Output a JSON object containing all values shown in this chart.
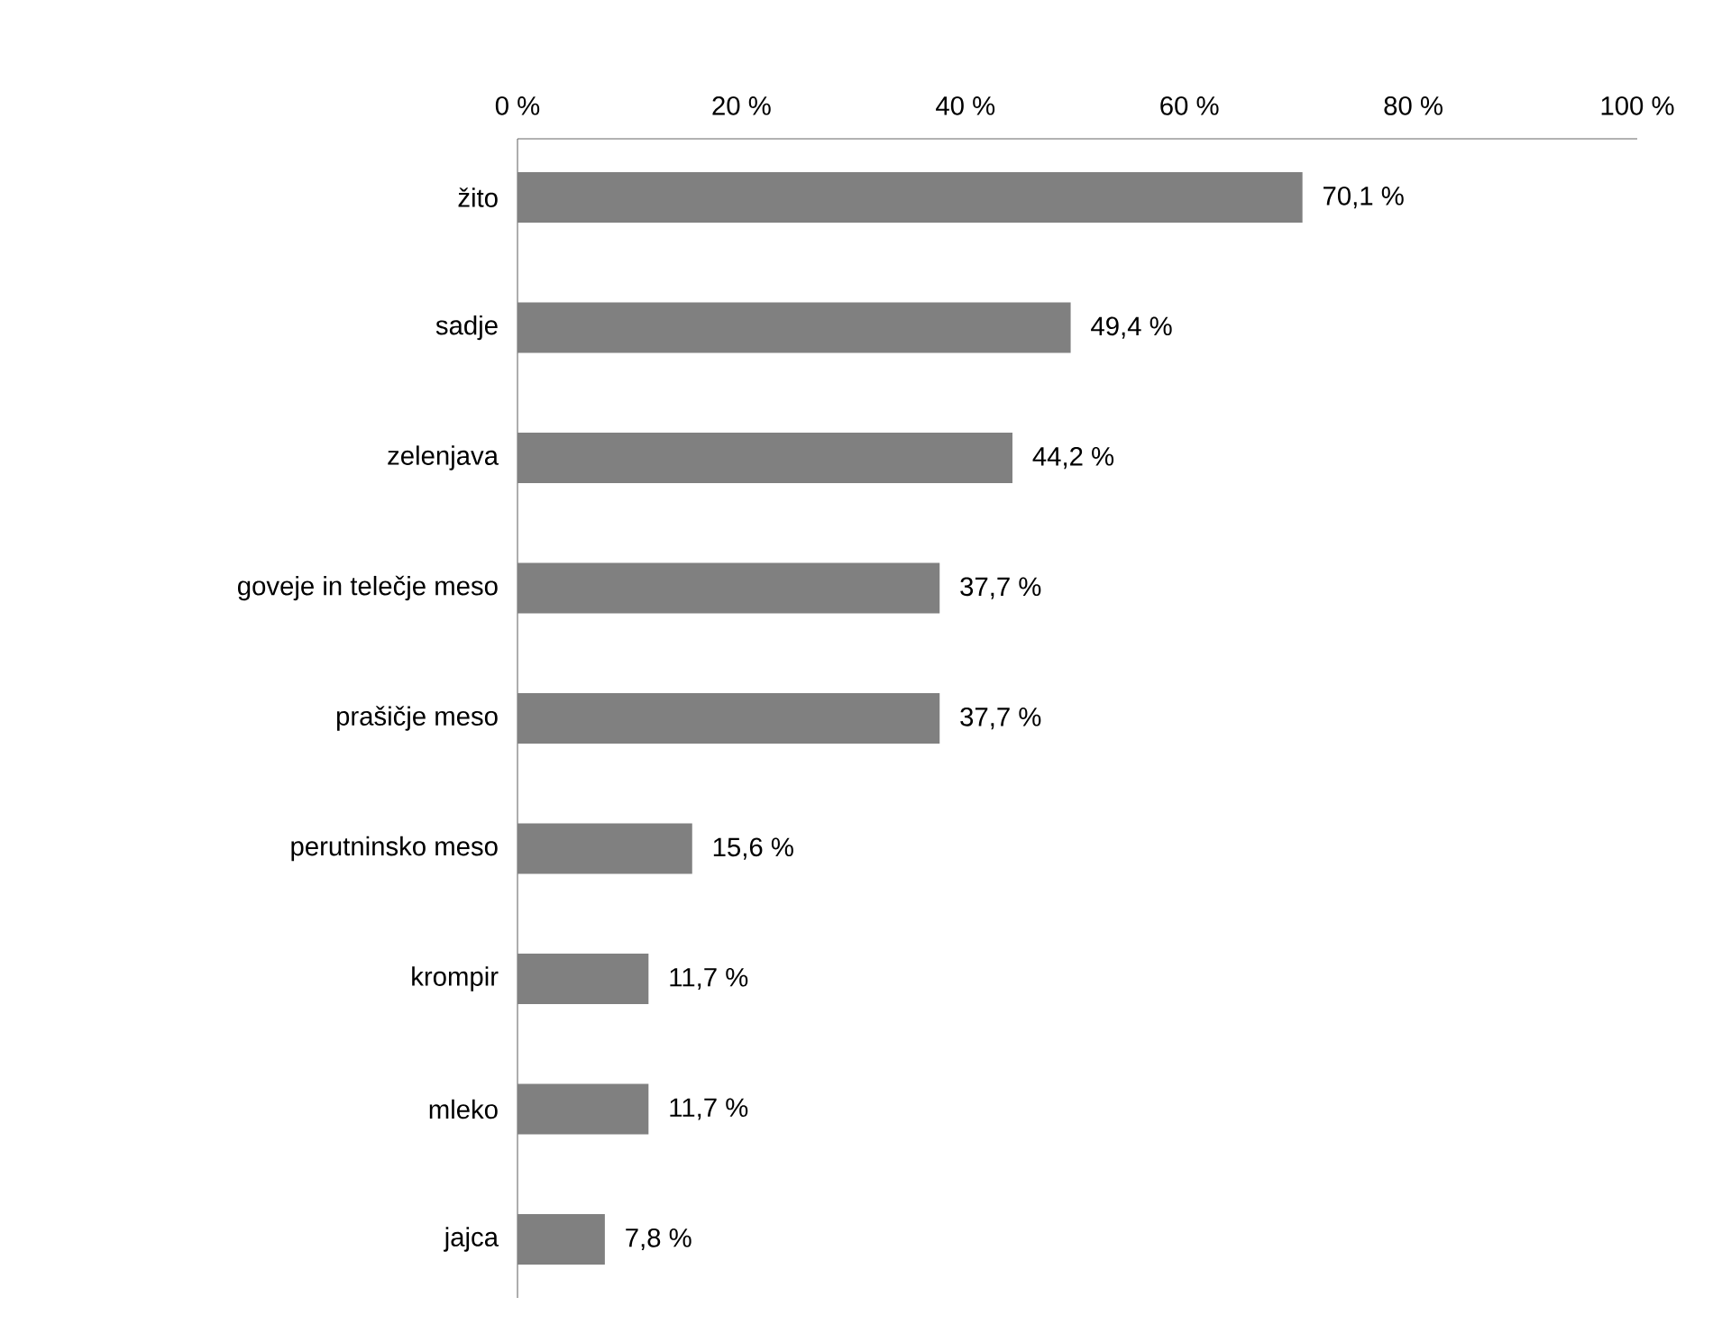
{
  "chart_data": {
    "type": "bar",
    "orientation": "horizontal",
    "categories": [
      "žito",
      "sadje",
      "zelenjava",
      "goveje in telečje meso",
      "prašičje meso",
      "perutninsko meso",
      "krompir",
      "mleko",
      "jajca"
    ],
    "values": [
      70.1,
      49.4,
      44.2,
      37.7,
      37.7,
      15.6,
      11.7,
      11.7,
      7.8
    ],
    "value_labels": [
      "70,1 %",
      "49,4 %",
      "44,2 %",
      "37,7 %",
      "37,7 %",
      "15,6 %",
      "11,7 %",
      "11,7 %",
      "7,8 %"
    ],
    "color": "#808080",
    "xlim": [
      0,
      100
    ],
    "xticks": [
      {
        "value": 0,
        "label": "0 %"
      },
      {
        "value": 20,
        "label": "20 %"
      },
      {
        "value": 40,
        "label": "40 %"
      },
      {
        "value": 60,
        "label": "60 %"
      },
      {
        "value": 80,
        "label": "80 %"
      },
      {
        "value": 100,
        "label": "100 %"
      }
    ]
  }
}
